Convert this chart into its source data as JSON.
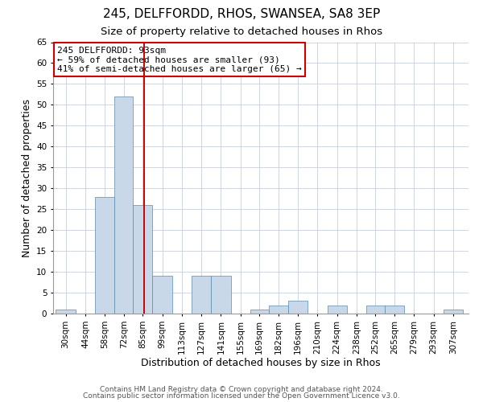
{
  "title": "245, DELFFORDD, RHOS, SWANSEA, SA8 3EP",
  "subtitle": "Size of property relative to detached houses in Rhos",
  "xlabel": "Distribution of detached houses by size in Rhos",
  "ylabel": "Number of detached properties",
  "bin_labels": [
    "30sqm",
    "44sqm",
    "58sqm",
    "72sqm",
    "85sqm",
    "99sqm",
    "113sqm",
    "127sqm",
    "141sqm",
    "155sqm",
    "169sqm",
    "182sqm",
    "196sqm",
    "210sqm",
    "224sqm",
    "238sqm",
    "252sqm",
    "265sqm",
    "279sqm",
    "293sqm",
    "307sqm"
  ],
  "bin_left_edges": [
    30,
    44,
    58,
    72,
    85,
    99,
    113,
    127,
    141,
    155,
    169,
    182,
    196,
    210,
    224,
    238,
    252,
    265,
    279,
    293,
    307
  ],
  "bar_widths": [
    14,
    14,
    14,
    13,
    14,
    14,
    14,
    14,
    14,
    14,
    13,
    14,
    14,
    14,
    14,
    14,
    13,
    14,
    14,
    14,
    14
  ],
  "bar_heights": [
    1,
    0,
    28,
    52,
    26,
    9,
    0,
    9,
    9,
    0,
    1,
    2,
    3,
    0,
    2,
    0,
    2,
    2,
    0,
    0,
    1
  ],
  "bar_color": "#c8d8e8",
  "bar_edge_color": "#5a8ab0",
  "property_line_x": 93,
  "property_line_color": "#cc0000",
  "annotation_line1": "245 DELFFORDD: 93sqm",
  "annotation_line2": "← 59% of detached houses are smaller (93)",
  "annotation_line3": "41% of semi-detached houses are larger (65) →",
  "annotation_box_color": "#ffffff",
  "annotation_box_edge_color": "#cc0000",
  "ylim": [
    0,
    65
  ],
  "yticks": [
    0,
    5,
    10,
    15,
    20,
    25,
    30,
    35,
    40,
    45,
    50,
    55,
    60,
    65
  ],
  "footer_line1": "Contains HM Land Registry data © Crown copyright and database right 2024.",
  "footer_line2": "Contains public sector information licensed under the Open Government Licence v3.0.",
  "background_color": "#ffffff",
  "grid_color": "#c8d0d8",
  "title_fontsize": 11,
  "subtitle_fontsize": 9.5,
  "axis_label_fontsize": 9,
  "tick_fontsize": 7.5,
  "annotation_fontsize": 8,
  "footer_fontsize": 6.5
}
